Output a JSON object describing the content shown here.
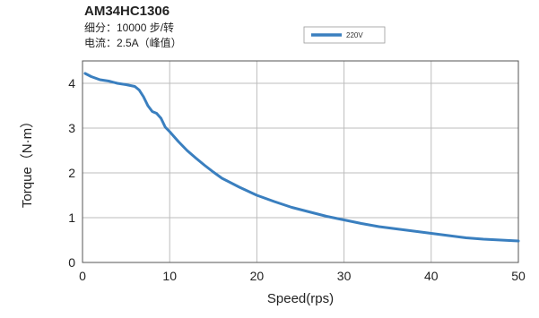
{
  "chart_data": {
    "type": "line",
    "title": "AM34HC1306",
    "subtitle_lines": [
      "细分：10000 步/转",
      "电流：2.5A（峰值）"
    ],
    "xlabel": "Speed(rps)",
    "ylabel": "Torque（N·m）",
    "xlim": [
      0,
      50
    ],
    "ylim": [
      0,
      4.5
    ],
    "x_ticks": [
      0,
      10,
      20,
      30,
      40,
      50
    ],
    "y_ticks": [
      0,
      1,
      2,
      3,
      4
    ],
    "grid": true,
    "legend_position": "top-center",
    "series": [
      {
        "name": "220V",
        "color": "#3a7fbf",
        "x": [
          0.3,
          1,
          2,
          3,
          4,
          5,
          6,
          6.5,
          7,
          7.5,
          8,
          8.5,
          9,
          9.5,
          10,
          11,
          12,
          13,
          14,
          15,
          16,
          18,
          20,
          22,
          24,
          26,
          28,
          30,
          32,
          34,
          36,
          38,
          40,
          42,
          44,
          46,
          48,
          50
        ],
        "y": [
          4.22,
          4.15,
          4.08,
          4.05,
          4.0,
          3.97,
          3.93,
          3.85,
          3.7,
          3.5,
          3.37,
          3.33,
          3.22,
          3.02,
          2.92,
          2.7,
          2.5,
          2.33,
          2.17,
          2.02,
          1.88,
          1.68,
          1.5,
          1.36,
          1.23,
          1.13,
          1.03,
          0.95,
          0.87,
          0.8,
          0.75,
          0.7,
          0.65,
          0.6,
          0.55,
          0.52,
          0.5,
          0.48
        ]
      }
    ]
  }
}
